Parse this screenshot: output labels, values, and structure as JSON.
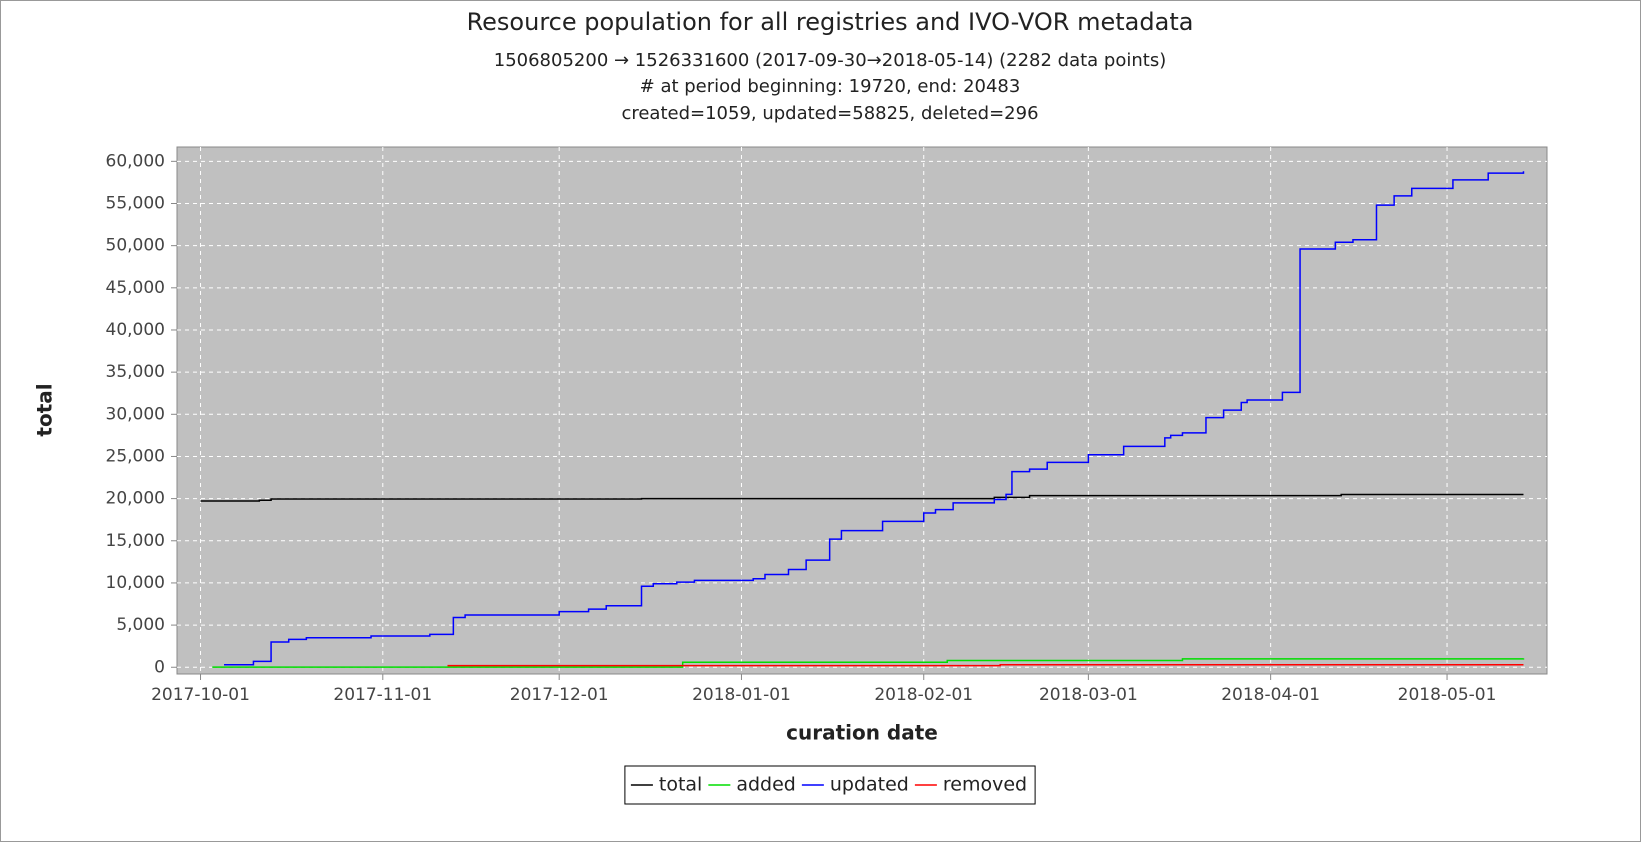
{
  "chart_data": {
    "type": "line",
    "drawstyle": "steps-post",
    "title": "Resource population for all registries and IVO-VOR metadata",
    "subtitles": [
      "1506805200 → 1526331600 (2017-09-30→2018-05-14) (2282 data points)",
      "# at period beginning: 19720, end: 20483",
      "created=1059, updated=58825, deleted=296"
    ],
    "xlabel": "curation date",
    "ylabel": "total",
    "xlim": [
      "2017-09-27",
      "2018-05-18"
    ],
    "xticks": [
      "2017-10-01",
      "2017-11-01",
      "2017-12-01",
      "2018-01-01",
      "2018-02-01",
      "2018-03-01",
      "2018-04-01",
      "2018-05-01"
    ],
    "ylim": [
      -800,
      61700
    ],
    "yticks": [
      0,
      {
        "value": 5000,
        "label": "5,000"
      },
      {
        "value": 10000,
        "label": "10,000"
      },
      {
        "value": 15000,
        "label": "15,000"
      },
      {
        "value": 20000,
        "label": "20,000"
      },
      {
        "value": 25000,
        "label": "25,000"
      },
      {
        "value": 30000,
        "label": "30,000"
      },
      {
        "value": 35000,
        "label": "35,000"
      },
      {
        "value": 40000,
        "label": "40,000"
      },
      {
        "value": 45000,
        "label": "45,000"
      },
      {
        "value": 50000,
        "label": "50,000"
      },
      {
        "value": 55000,
        "label": "55,000"
      },
      {
        "value": 60000,
        "label": "60,000"
      }
    ],
    "grid": true,
    "legend": "bottom",
    "series": [
      {
        "name": "total",
        "color": "#000000",
        "x": [
          "2017-10-01",
          "2017-10-11",
          "2017-10-13",
          "2017-12-15",
          "2018-02-13",
          "2018-02-19",
          "2018-04-13",
          "2018-05-14"
        ],
        "values": [
          19720,
          19800,
          19950,
          20000,
          20150,
          20350,
          20483,
          20483
        ]
      },
      {
        "name": "added",
        "color": "#00dd00",
        "x": [
          "2017-10-03",
          "2017-12-22",
          "2018-02-05",
          "2018-03-17",
          "2018-05-14"
        ],
        "values": [
          20,
          600,
          800,
          1000,
          1059
        ]
      },
      {
        "name": "updated",
        "color": "#0000ff",
        "x": [
          "2017-10-05",
          "2017-10-10",
          "2017-10-13",
          "2017-10-16",
          "2017-10-19",
          "2017-10-30",
          "2017-11-09",
          "2017-11-13",
          "2017-11-15",
          "2017-12-01",
          "2017-12-06",
          "2017-12-09",
          "2017-12-15",
          "2017-12-17",
          "2017-12-21",
          "2017-12-24",
          "2018-01-03",
          "2018-01-05",
          "2018-01-09",
          "2018-01-12",
          "2018-01-16",
          "2018-01-18",
          "2018-01-25",
          "2018-02-01",
          "2018-02-03",
          "2018-02-06",
          "2018-02-13",
          "2018-02-15",
          "2018-02-16",
          "2018-02-19",
          "2018-02-22",
          "2018-03-01",
          "2018-03-07",
          "2018-03-14",
          "2018-03-15",
          "2018-03-17",
          "2018-03-21",
          "2018-03-24",
          "2018-03-27",
          "2018-03-28",
          "2018-04-03",
          "2018-04-06",
          "2018-04-12",
          "2018-04-15",
          "2018-04-19",
          "2018-04-22",
          "2018-04-25",
          "2018-05-02",
          "2018-05-08",
          "2018-05-14"
        ],
        "values": [
          300,
          700,
          3000,
          3300,
          3500,
          3700,
          3900,
          5900,
          6200,
          6600,
          6900,
          7300,
          9600,
          9900,
          10100,
          10300,
          10500,
          11000,
          11600,
          12700,
          15200,
          16200,
          17300,
          18300,
          18700,
          19500,
          19900,
          20500,
          23200,
          23500,
          24300,
          25200,
          26200,
          27200,
          27500,
          27800,
          29600,
          30500,
          31400,
          31700,
          32600,
          49600,
          50400,
          50700,
          54800,
          55900,
          56800,
          57800,
          58600,
          58825
        ]
      },
      {
        "name": "removed",
        "color": "#ff0000",
        "x": [
          "2017-11-12",
          "2018-02-14",
          "2018-05-14"
        ],
        "values": [
          200,
          296,
          296
        ]
      }
    ]
  }
}
